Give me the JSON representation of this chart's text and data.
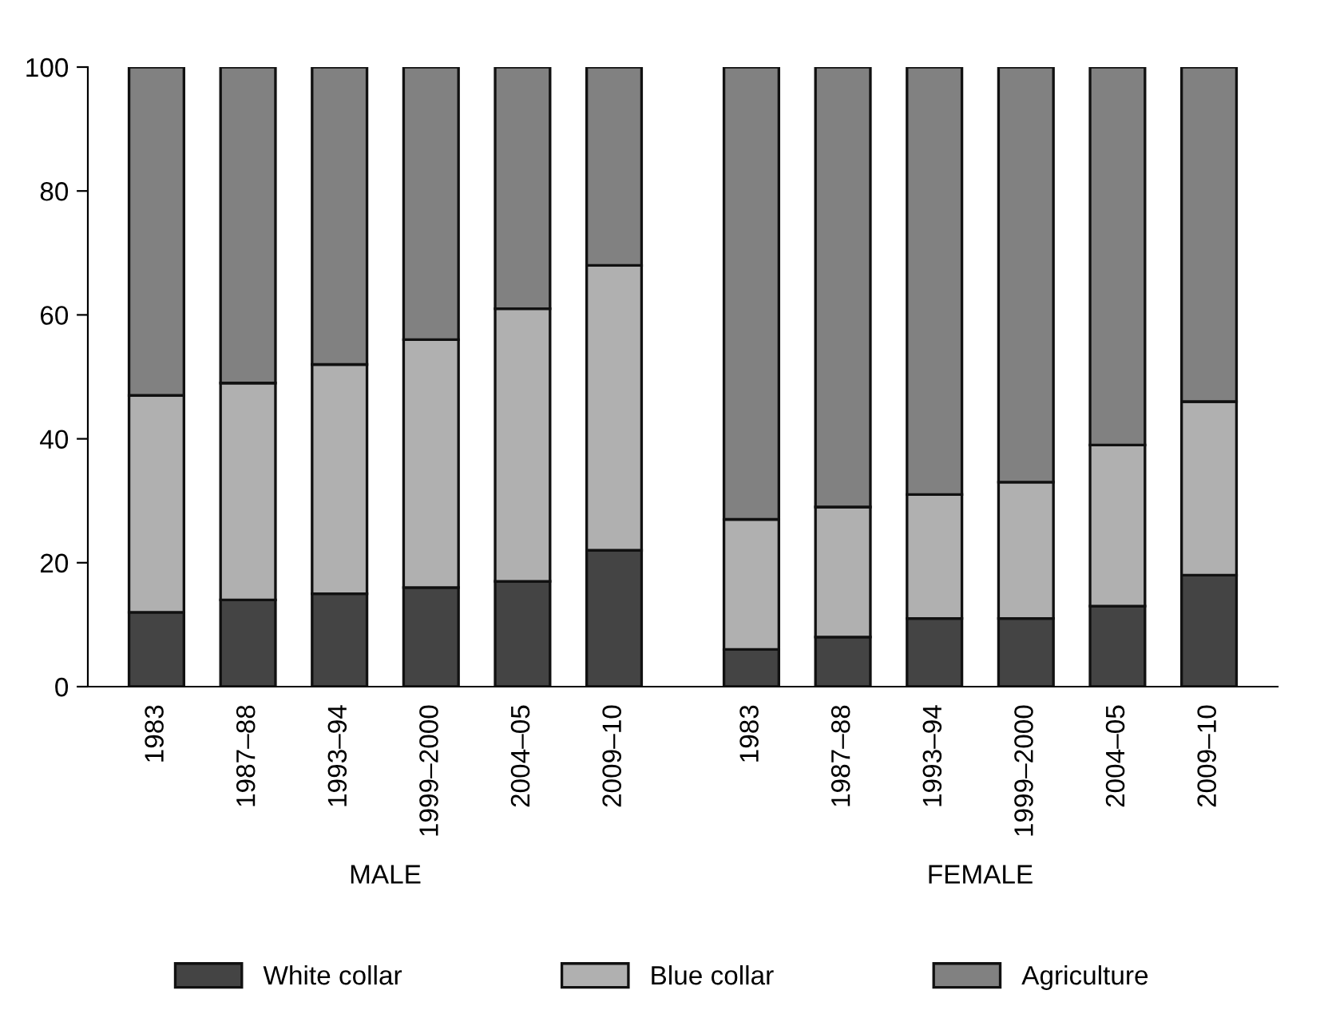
{
  "chart_data": [
    {
      "type": "bar",
      "stacked": true,
      "xlabel": "MALE",
      "categories": [
        "1983",
        "1987–88",
        "1993–94",
        "1999–2000",
        "2004–05",
        "2009–10"
      ],
      "ylim": [
        0,
        100
      ],
      "yticks": [
        0,
        20,
        40,
        60,
        80,
        100
      ],
      "legend": "bottom",
      "tick_labels": "xy",
      "series": [
        {
          "name": "White collar",
          "color": "#444444",
          "values": [
            12,
            14,
            15,
            16,
            17,
            22
          ]
        },
        {
          "name": "Blue collar",
          "color": "#b0b0b0",
          "values": [
            35,
            35,
            37,
            40,
            44,
            46
          ]
        },
        {
          "name": "Agriculture",
          "color": "#818181",
          "values": [
            53,
            51,
            48,
            44,
            39,
            32
          ]
        }
      ]
    },
    {
      "type": "bar",
      "stacked": true,
      "xlabel": "FEMALE",
      "categories": [
        "1983",
        "1987–88",
        "1993–94",
        "1999–2000",
        "2004–05",
        "2009–10"
      ],
      "ylim": [
        0,
        100
      ],
      "tick_labels": "x",
      "series": [
        {
          "color": "#444444",
          "values": [
            6,
            8,
            11,
            11,
            13,
            18
          ]
        },
        {
          "color": "#b0b0b0",
          "values": [
            21,
            21,
            20,
            22,
            26,
            28
          ]
        },
        {
          "color": "#818181",
          "values": [
            73,
            71,
            69,
            67,
            61,
            54
          ]
        }
      ]
    }
  ]
}
